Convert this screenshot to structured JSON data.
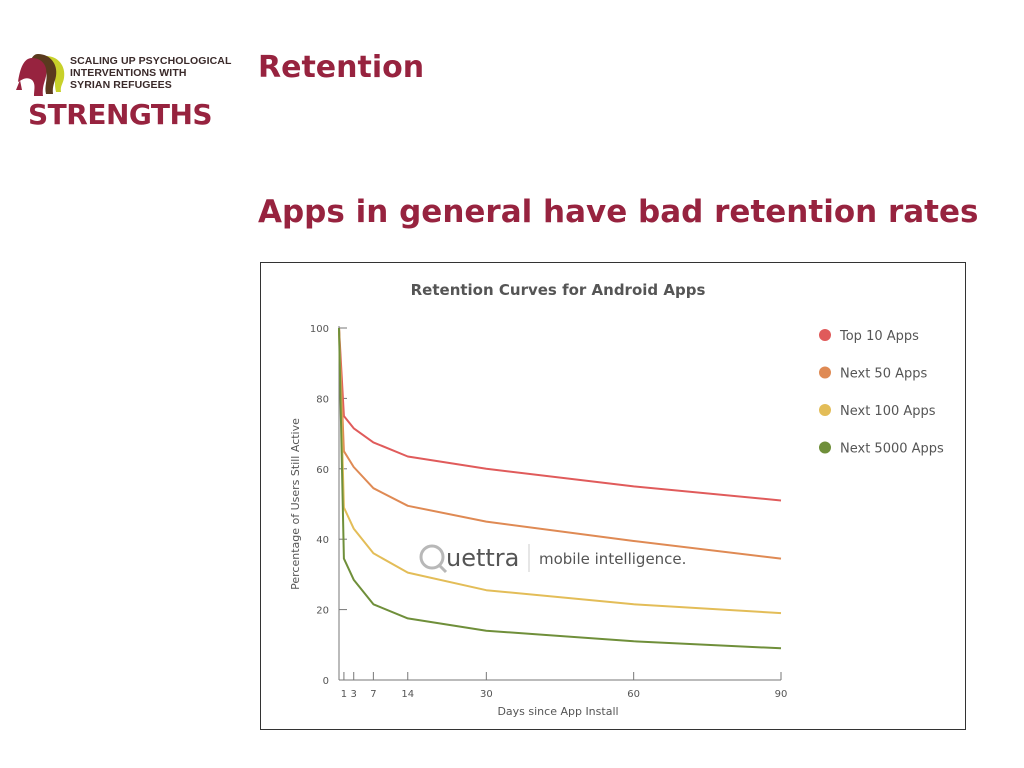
{
  "logo": {
    "line1": "SCALING UP PSYCHOLOGICAL",
    "line2": "INTERVENTIONS WITH",
    "line3": "SYRIAN REFUGEES",
    "wordmark": "STRENGTHS"
  },
  "slide": {
    "heading": "Retention",
    "subheading": "Apps in general have bad retention rates"
  },
  "watermark": {
    "brand": "uettra",
    "tagline": "mobile intelligence."
  },
  "colors": {
    "brand": "#97233f",
    "top10": "#e05b5b",
    "next50": "#df8a54",
    "next100": "#e3bd58",
    "next5000": "#6f8f3a"
  },
  "chart_data": {
    "type": "line",
    "title": "Retention Curves for Android Apps",
    "xlabel": "Days since App Install",
    "ylabel": "Percentage of Users Still Active",
    "xlim": [
      0,
      90
    ],
    "ylim": [
      0,
      100
    ],
    "xticks": [
      1,
      3,
      7,
      14,
      30,
      60,
      90
    ],
    "yticks": [
      0,
      20,
      40,
      60,
      80,
      100
    ],
    "legend_position": "right",
    "grid": false,
    "series": [
      {
        "name": "Top 10 Apps",
        "color": "#e05b5b",
        "points": [
          [
            0,
            100
          ],
          [
            1,
            75
          ],
          [
            3,
            71.5
          ],
          [
            7,
            67.5
          ],
          [
            14,
            63.5
          ],
          [
            30,
            60
          ],
          [
            60,
            55
          ],
          [
            90,
            51
          ]
        ]
      },
      {
        "name": "Next 50 Apps",
        "color": "#df8a54",
        "points": [
          [
            0,
            100
          ],
          [
            1,
            65
          ],
          [
            3,
            60.5
          ],
          [
            7,
            54.5
          ],
          [
            14,
            49.5
          ],
          [
            30,
            45
          ],
          [
            60,
            39.5
          ],
          [
            90,
            34.5
          ]
        ]
      },
      {
        "name": "Next 100 Apps",
        "color": "#e3bd58",
        "points": [
          [
            0,
            100
          ],
          [
            1,
            49
          ],
          [
            3,
            43
          ],
          [
            7,
            36
          ],
          [
            14,
            30.5
          ],
          [
            30,
            25.5
          ],
          [
            60,
            21.5
          ],
          [
            90,
            19
          ]
        ]
      },
      {
        "name": "Next 5000 Apps",
        "color": "#6f8f3a",
        "points": [
          [
            0,
            100
          ],
          [
            1,
            34.5
          ],
          [
            3,
            28.5
          ],
          [
            7,
            21.5
          ],
          [
            14,
            17.5
          ],
          [
            30,
            14
          ],
          [
            60,
            11
          ],
          [
            90,
            9
          ]
        ]
      }
    ]
  }
}
